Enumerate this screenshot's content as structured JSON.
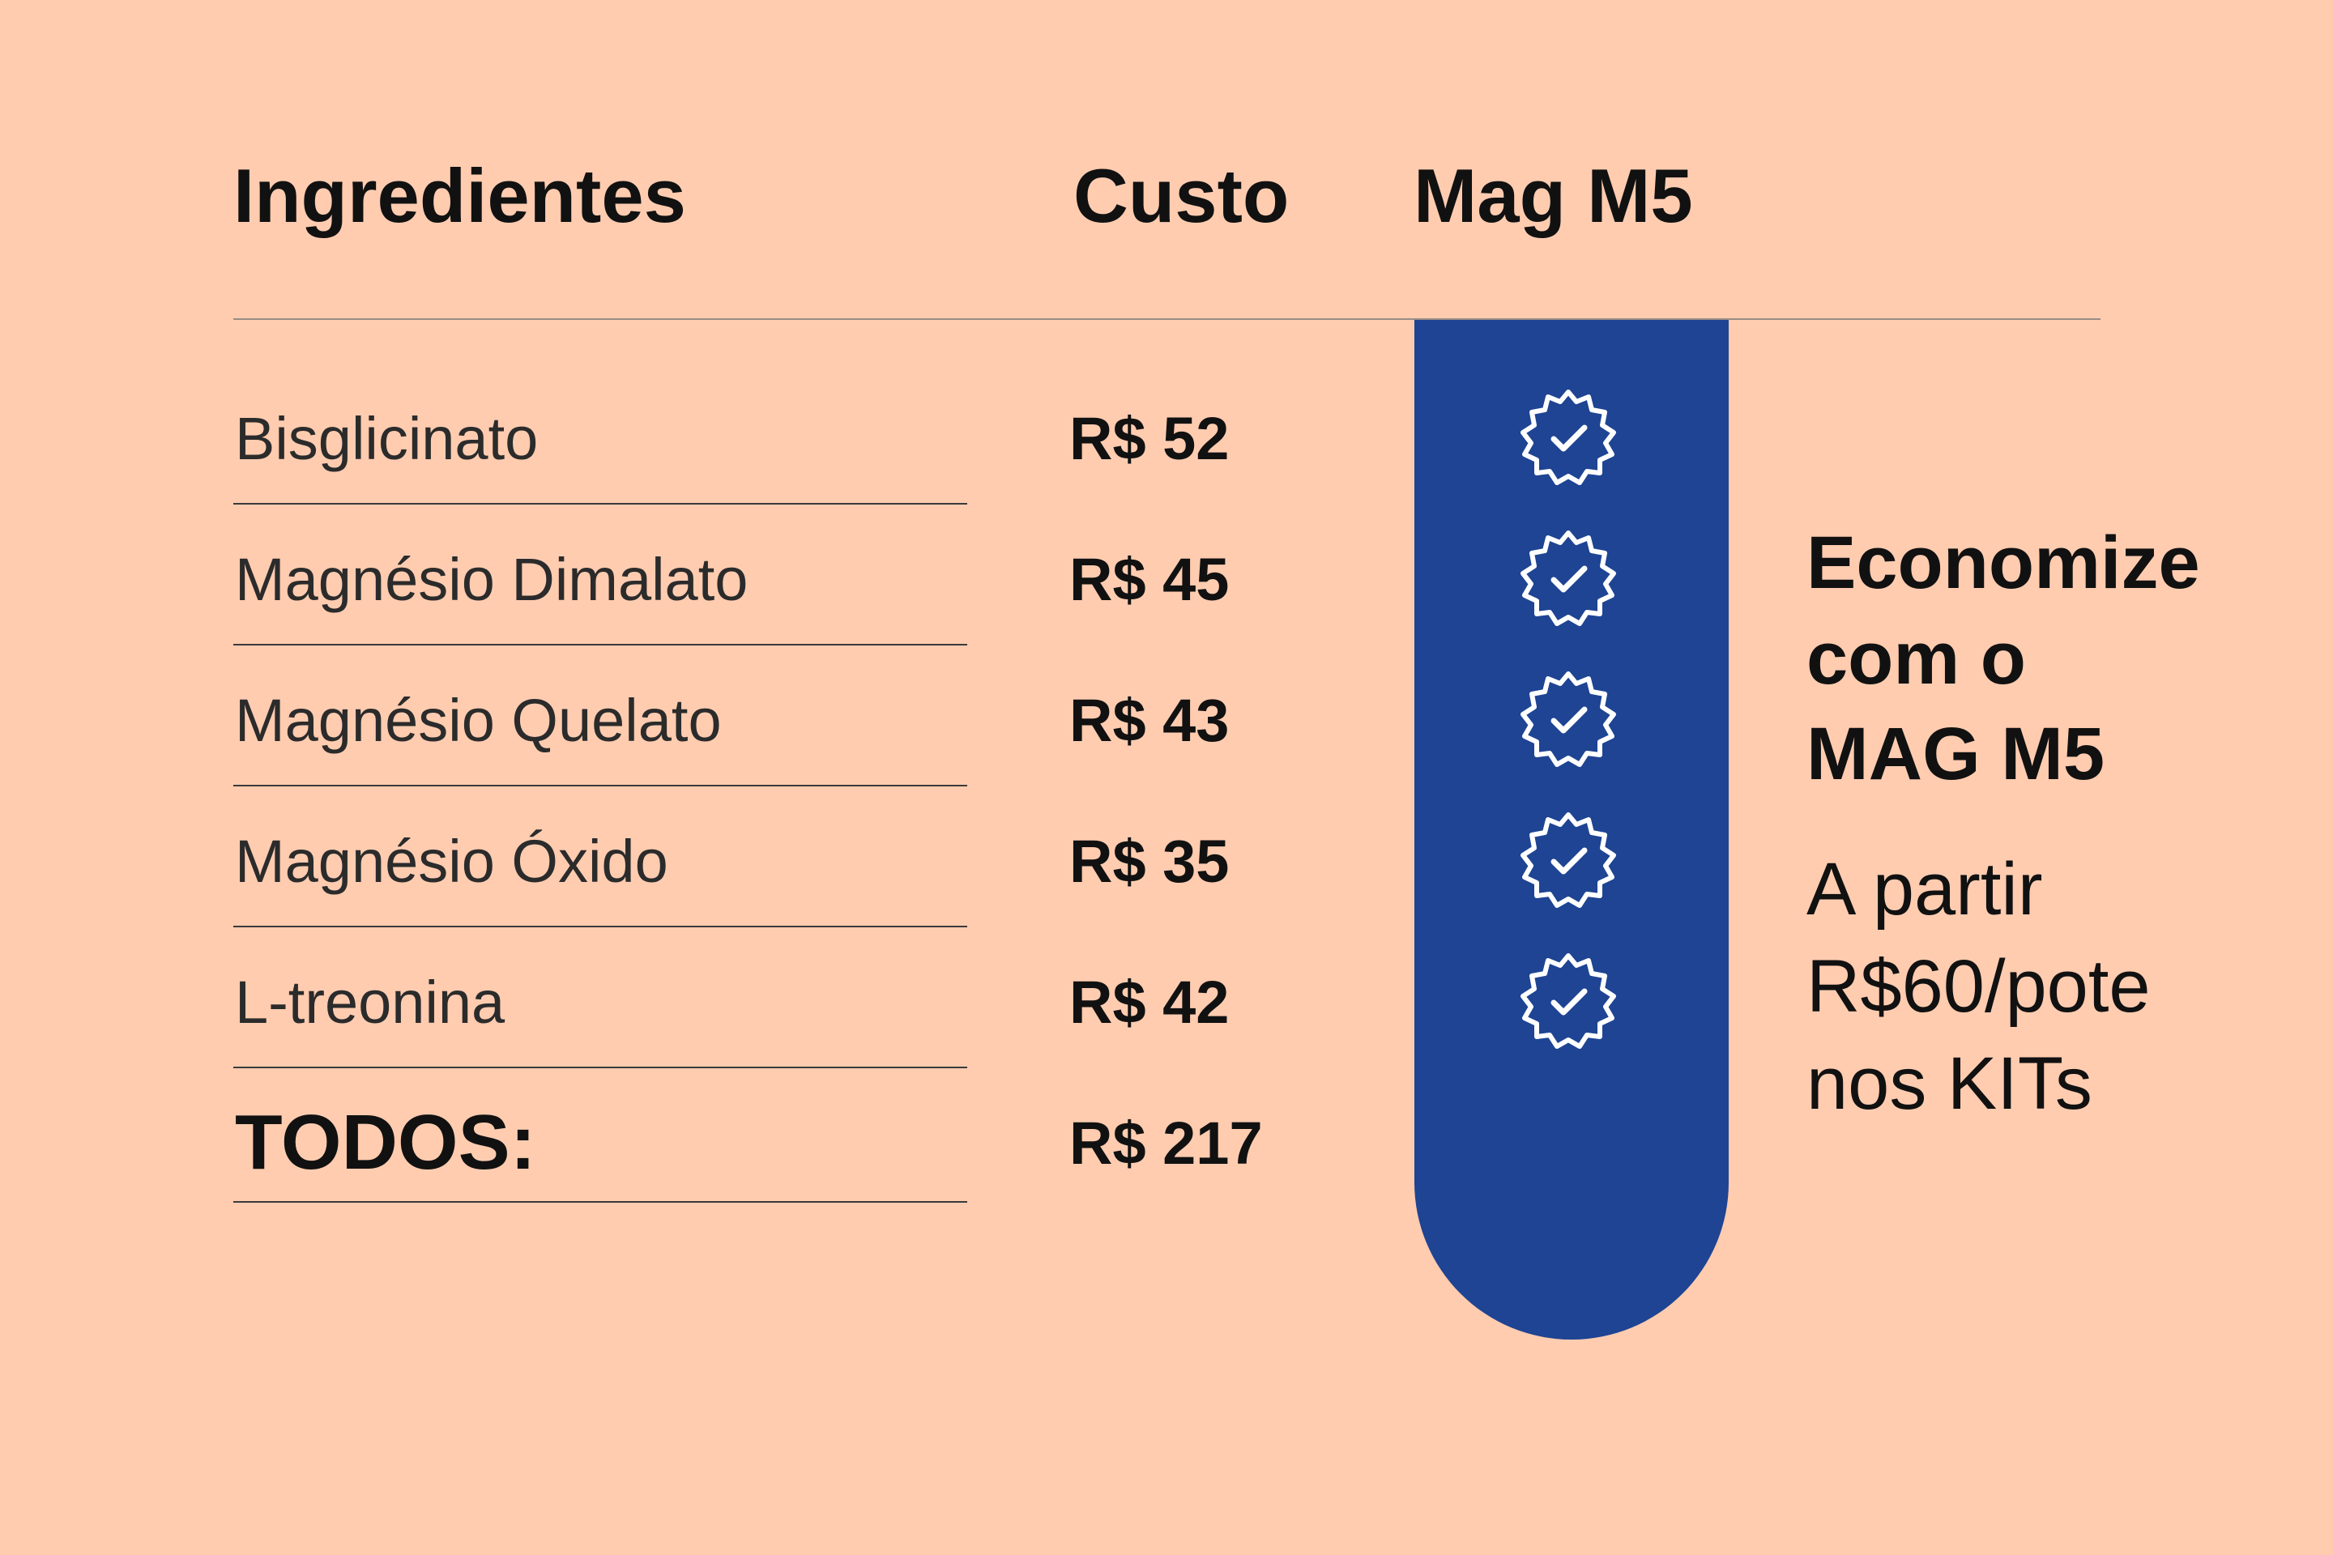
{
  "header": {
    "ingredients": "Ingredientes",
    "cost": "Custo",
    "product": "Mag M5"
  },
  "rows": [
    {
      "label": "Bisglicinato",
      "cost": "R$ 52",
      "check": true
    },
    {
      "label": "Magnésio Dimalato",
      "cost": "R$ 45",
      "check": true
    },
    {
      "label": "Magnésio Quelato",
      "cost": "R$ 43",
      "check": true
    },
    {
      "label": "Magnésio Óxido",
      "cost": "R$ 35",
      "check": true
    },
    {
      "label": "L-treonina",
      "cost": "R$ 42",
      "check": true
    }
  ],
  "total": {
    "label": "TODOS:",
    "cost": "R$ 217"
  },
  "promo": {
    "title_lines": [
      "Economize",
      "com o",
      "MAG M5"
    ],
    "subtitle_lines": [
      "A partir",
      "R$60/pote",
      "nos KITs"
    ]
  },
  "colors": {
    "background": "#FFCCB0",
    "accent": "#1E4493",
    "text": "#111111"
  },
  "icons": {
    "check": "verified-badge-check-icon"
  }
}
